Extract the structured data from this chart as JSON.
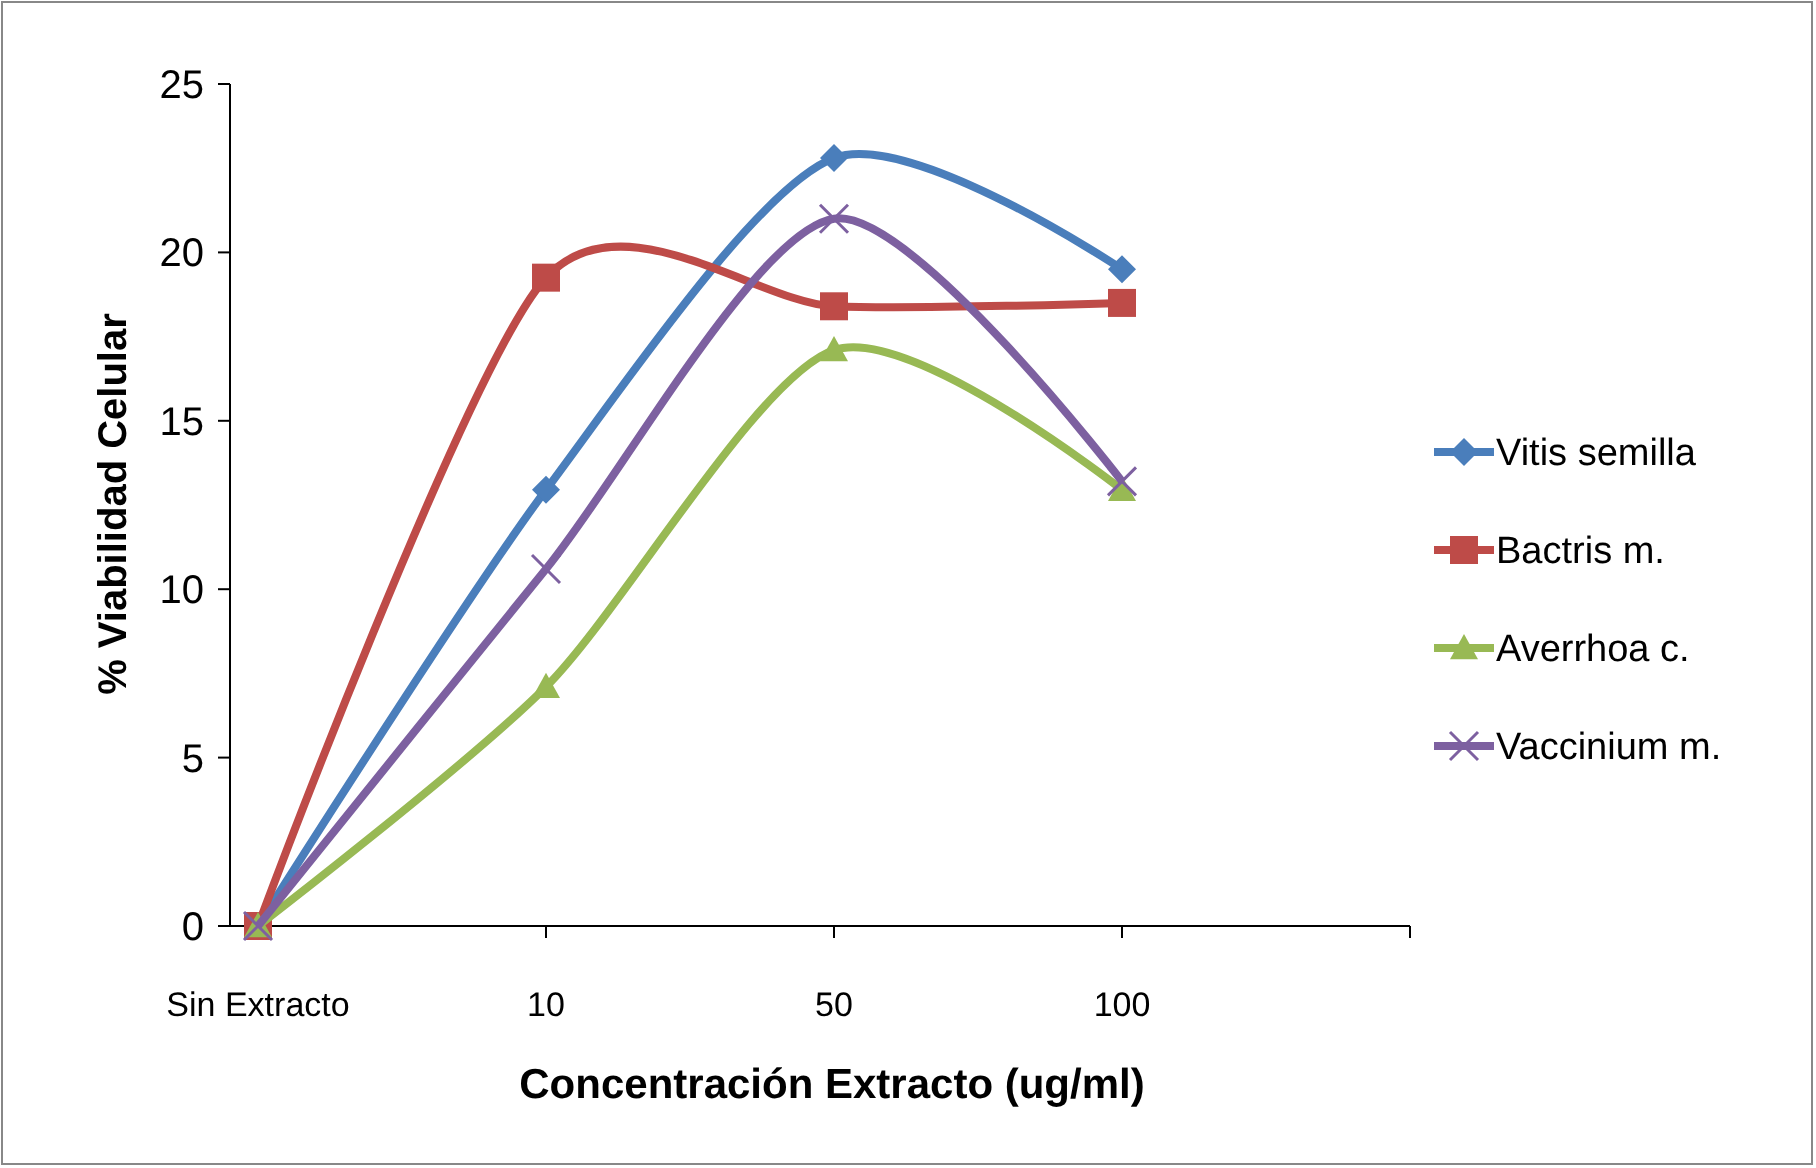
{
  "chart_data": {
    "type": "line",
    "xlabel": "Concentración Extracto (ug/ml)",
    "ylabel": "% Viabilidad Celular",
    "categories": [
      "Sin Extracto",
      "10",
      "50",
      "100",
      null
    ],
    "ylim": [
      0,
      25
    ],
    "yticks": [
      0,
      5,
      10,
      15,
      20,
      25
    ],
    "grid": false,
    "legend": "right",
    "series": [
      {
        "name": "Vitis semilla",
        "color": "#4a7ebb",
        "marker": "diamond",
        "values": [
          0,
          12.95,
          22.8,
          19.5,
          null
        ]
      },
      {
        "name": "Bactris m.",
        "color": "#be4b48",
        "marker": "square",
        "values": [
          0,
          19.25,
          18.4,
          18.5,
          null
        ]
      },
      {
        "name": "Averrhoa c.",
        "color": "#98b954",
        "marker": "triangle",
        "values": [
          0,
          7.1,
          17.1,
          12.95,
          null
        ]
      },
      {
        "name": "Vaccinium m.",
        "color": "#7d60a0",
        "marker": "cross",
        "values": [
          0,
          10.6,
          21,
          13.2,
          null
        ]
      }
    ]
  }
}
